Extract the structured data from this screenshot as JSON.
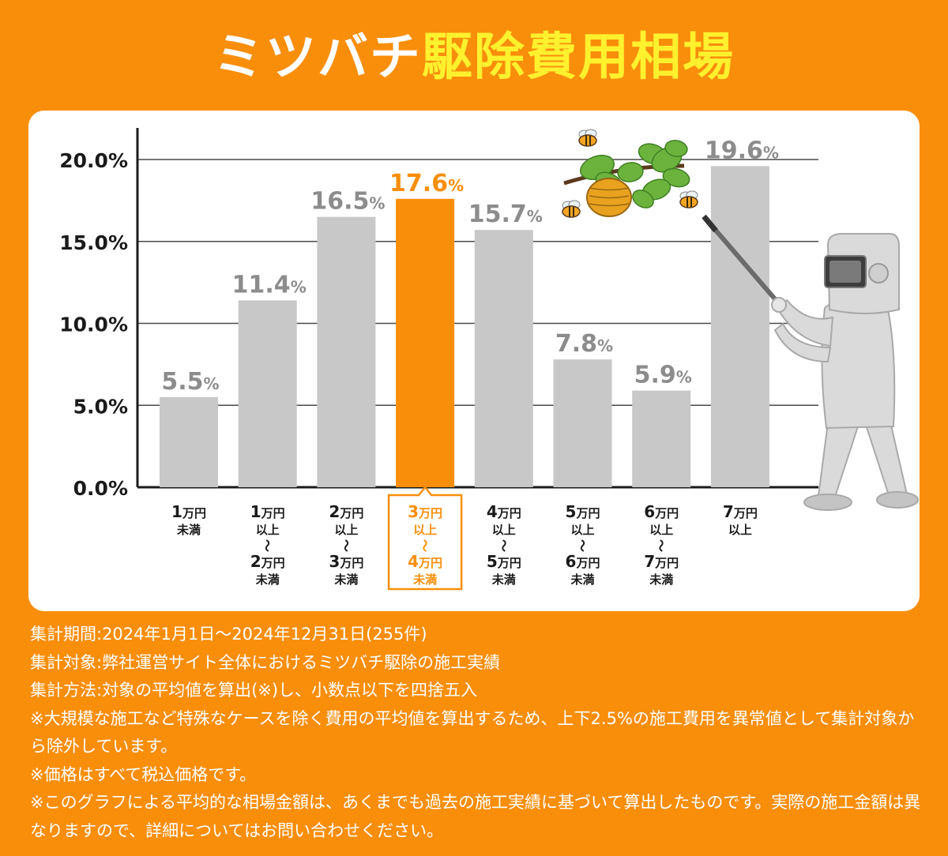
{
  "title": {
    "part1": "ミツバチ",
    "part2": "駆除費用相場"
  },
  "colors": {
    "background": "#F98E0B",
    "title_accent": "#FFF12E",
    "bar": "#C8C8C8",
    "bar_highlight": "#F98E0B",
    "value_label": "#8C8C8C"
  },
  "chart_data": {
    "type": "bar",
    "ylim": [
      0,
      20
    ],
    "yticks": [
      "0.0%",
      "5.0%",
      "10.0%",
      "15.0%",
      "20.0%"
    ],
    "ytick_values": [
      0,
      5,
      10,
      15,
      20
    ],
    "grid": true,
    "highlight_index": 3,
    "categories": [
      "1万円 未満",
      "1万円 以上 〜 2万円 未満",
      "2万円 以上 〜 3万円 未満",
      "3万円 以上 〜 4万円 未満",
      "4万円 以上 〜 5万円 未満",
      "5万円 以上 〜 6万円 未満",
      "6万円 以上 〜 7万円 未満",
      "7万円 以上"
    ],
    "category_lines": [
      [
        "1万円",
        "未満"
      ],
      [
        "1万円",
        "以上",
        "〜",
        "2万円",
        "未満"
      ],
      [
        "2万円",
        "以上",
        "〜",
        "3万円",
        "未満"
      ],
      [
        "3万円",
        "以上",
        "〜",
        "4万円",
        "未満"
      ],
      [
        "4万円",
        "以上",
        "〜",
        "5万円",
        "未満"
      ],
      [
        "5万円",
        "以上",
        "〜",
        "6万円",
        "未満"
      ],
      [
        "6万円",
        "以上",
        "〜",
        "7万円",
        "未満"
      ],
      [
        "7万円",
        "以上"
      ]
    ],
    "values": [
      5.5,
      11.4,
      16.5,
      17.6,
      15.7,
      7.8,
      5.9,
      19.6
    ],
    "value_labels": [
      "5.5%",
      "11.4%",
      "16.5%",
      "17.6%",
      "15.7%",
      "7.8%",
      "5.9%",
      "19.6%"
    ]
  },
  "notes": [
    "集計期間:2024年1月1日〜2024年12月31日(255件)",
    "集計対象:弊社運営サイト全体におけるミツバチ駆除の施工実績",
    "集計方法:対象の平均値を算出(※)し、小数点以下を四捨五入",
    "※大規模な施工など特殊なケースを除く費用の平均値を算出するため、上下2.5%の施工費用を異常値として集計対象から除外しています。",
    "※価格はすべて税込価格です。",
    "※このグラフによる平均的な相場金額は、あくまでも過去の施工実績に基づいて算出したものです。実際の施工金額は異なりますので、詳細についてはお問い合わせください。"
  ],
  "illustration": {
    "hive_icon": "beehive-branch-icon",
    "bee_icon": "bee-icon",
    "worker_icon": "protective-suit-worker-icon"
  }
}
